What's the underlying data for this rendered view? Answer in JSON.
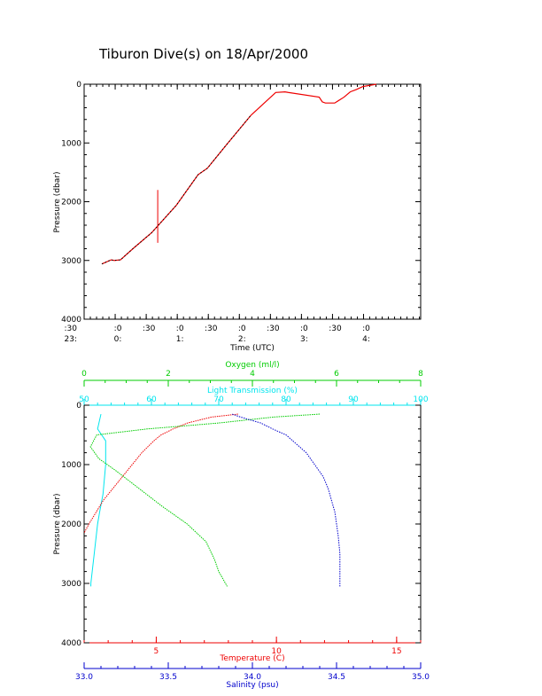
{
  "title": "Tiburon Dive(s) on 18/Apr/2000",
  "colors": {
    "axis": "#000000",
    "oxygen": "#00cc00",
    "transmission": "#00e5ee",
    "temperature": "#ee0000",
    "salinity": "#0000cc",
    "trace": "#000000"
  },
  "chart_data": [
    {
      "type": "line",
      "ylabel": "Pressure (dbar)",
      "xlabel": "Time (UTC)",
      "ylim": [
        4000,
        0
      ],
      "yticks": [
        "0",
        "1000",
        "2000",
        "3000",
        "4000"
      ],
      "xticks_top": [
        ":30",
        ":0",
        ":30",
        ":0",
        ":30",
        ":0",
        ":30",
        ":0",
        ":30",
        ":0"
      ],
      "xticks_bottom": [
        "23:",
        "0:",
        "",
        "1:",
        "",
        "2:",
        "",
        "3:",
        "",
        "4:"
      ],
      "xlim_hours": [
        23.5,
        4.92
      ],
      "series": [
        {
          "x": [
            0.0,
            0.15,
            0.2,
            0.3,
            0.5,
            0.8,
            1.2,
            1.55,
            1.7,
            2.0,
            2.4,
            2.8,
            2.95,
            3.0,
            3.5,
            3.55,
            3.6,
            3.75,
            3.9,
            4.0,
            4.1,
            4.2,
            4.42
          ],
          "y": [
            3060,
            2990,
            3000,
            2990,
            2800,
            2530,
            2060,
            1540,
            1430,
            1040,
            530,
            140,
            130,
            140,
            220,
            300,
            320,
            320,
            220,
            130,
            90,
            40,
            0
          ]
        }
      ],
      "spike": {
        "x": 0.9,
        "y0": 1800,
        "y1": 2700
      }
    },
    {
      "type": "line",
      "ylabel": "Pressure (dbar)",
      "ylim": [
        4000,
        0
      ],
      "yticks": [
        "0",
        "1000",
        "2000",
        "3000",
        "4000"
      ],
      "axes": {
        "oxygen": {
          "label": "Oxygen (ml/l)",
          "range": [
            0,
            8
          ],
          "ticks": [
            "0",
            "2",
            "4",
            "6",
            "8"
          ]
        },
        "transmission": {
          "label": "Light Transmission (%)",
          "range": [
            50,
            100
          ],
          "ticks": [
            "50",
            "60",
            "70",
            "80",
            "90",
            "100"
          ]
        },
        "temperature": {
          "label": "Temperature (C)",
          "range": [
            2,
            16
          ],
          "ticks": [
            "5",
            "10",
            "15"
          ]
        },
        "salinity": {
          "label": "Salinity (psu)",
          "range": [
            33.0,
            35.0
          ],
          "ticks": [
            "33.0",
            "33.5",
            "34.0",
            "34.5",
            "35.0"
          ]
        }
      },
      "series": [
        {
          "name": "Oxygen",
          "pressure": [
            150,
            200,
            300,
            400,
            500,
            700,
            900,
            1100,
            1400,
            1700,
            2000,
            2300,
            2600,
            2800,
            3050
          ],
          "values": [
            5.6,
            4.5,
            3.2,
            1.5,
            0.3,
            0.15,
            0.35,
            0.75,
            1.3,
            1.85,
            2.45,
            2.9,
            3.1,
            3.2,
            3.4
          ]
        },
        {
          "name": "Light Transmission",
          "pressure": [
            150,
            400,
            600,
            1000,
            1500,
            1800,
            2000,
            2500,
            2800,
            3000,
            3050
          ],
          "values": [
            52.5,
            52.0,
            53.2,
            53.2,
            52.8,
            52.3,
            52.0,
            51.5,
            51.2,
            51.0,
            51.0
          ]
        },
        {
          "name": "Temperature",
          "pressure": [
            150,
            200,
            300,
            400,
            500,
            600,
            800,
            1000,
            1200,
            1400,
            1600,
            1800,
            2000,
            2150
          ],
          "values": [
            8.4,
            7.3,
            6.3,
            5.7,
            5.2,
            4.9,
            4.4,
            4.0,
            3.6,
            3.2,
            2.8,
            2.5,
            2.2,
            2.0
          ]
        },
        {
          "name": "Salinity",
          "pressure": [
            150,
            200,
            300,
            400,
            500,
            600,
            800,
            1000,
            1200,
            1400,
            1600,
            1800,
            2000,
            2200,
            2500,
            2800,
            3050
          ],
          "values": [
            33.88,
            33.93,
            34.05,
            34.12,
            34.2,
            34.24,
            34.32,
            34.37,
            34.42,
            34.45,
            34.47,
            34.49,
            34.5,
            34.51,
            34.52,
            34.52,
            34.52
          ]
        }
      ]
    }
  ]
}
